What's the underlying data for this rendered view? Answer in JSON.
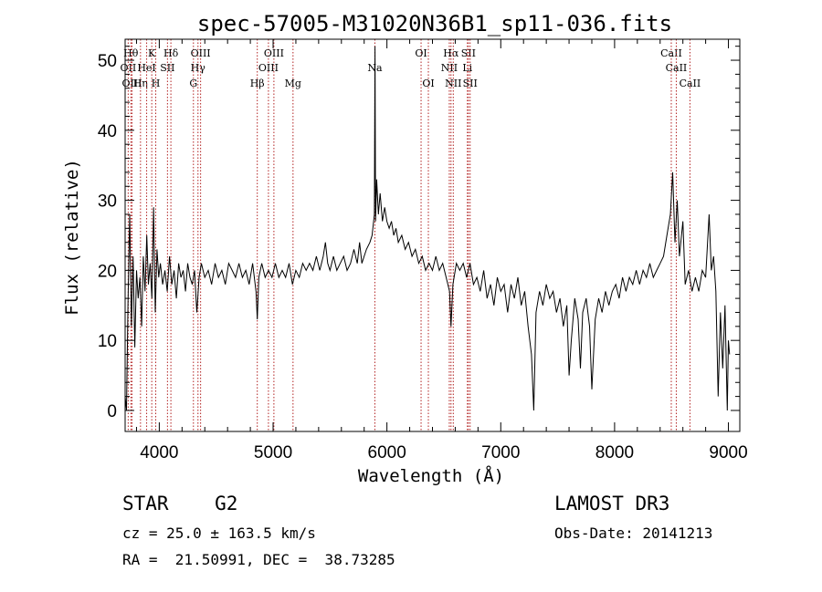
{
  "chart_data": {
    "type": "line",
    "title": "spec-57005-M31020N36B1_sp11-036.fits",
    "xlabel": "Wavelength (Å)",
    "ylabel": "Flux (relative)",
    "xlim": [
      3700,
      9100
    ],
    "ylim": [
      -3,
      53
    ],
    "xticks": [
      4000,
      5000,
      6000,
      7000,
      8000,
      9000
    ],
    "yticks": [
      0,
      10,
      20,
      30,
      40,
      50
    ],
    "grid": false,
    "series": [
      {
        "name": "flux",
        "color": "#000000",
        "points": [
          [
            3700,
            2
          ],
          [
            3712,
            0
          ],
          [
            3725,
            15
          ],
          [
            3740,
            28
          ],
          [
            3755,
            12
          ],
          [
            3770,
            22
          ],
          [
            3785,
            9
          ],
          [
            3800,
            20
          ],
          [
            3815,
            16
          ],
          [
            3830,
            19
          ],
          [
            3845,
            12
          ],
          [
            3860,
            22
          ],
          [
            3875,
            17
          ],
          [
            3890,
            25
          ],
          [
            3905,
            18
          ],
          [
            3920,
            21
          ],
          [
            3935,
            16
          ],
          [
            3950,
            29
          ],
          [
            3965,
            14
          ],
          [
            3980,
            23
          ],
          [
            3995,
            19
          ],
          [
            4010,
            21
          ],
          [
            4030,
            18
          ],
          [
            4050,
            20
          ],
          [
            4070,
            17
          ],
          [
            4090,
            22
          ],
          [
            4110,
            18
          ],
          [
            4130,
            20
          ],
          [
            4150,
            16
          ],
          [
            4170,
            21
          ],
          [
            4190,
            19
          ],
          [
            4210,
            20
          ],
          [
            4230,
            17
          ],
          [
            4250,
            21
          ],
          [
            4270,
            19
          ],
          [
            4290,
            18
          ],
          [
            4310,
            20
          ],
          [
            4330,
            14
          ],
          [
            4350,
            19
          ],
          [
            4370,
            21
          ],
          [
            4400,
            19
          ],
          [
            4430,
            20
          ],
          [
            4460,
            18
          ],
          [
            4490,
            21
          ],
          [
            4520,
            19
          ],
          [
            4550,
            20
          ],
          [
            4580,
            18
          ],
          [
            4610,
            21
          ],
          [
            4640,
            20
          ],
          [
            4670,
            19
          ],
          [
            4700,
            21
          ],
          [
            4730,
            19
          ],
          [
            4760,
            20
          ],
          [
            4790,
            18
          ],
          [
            4820,
            21
          ],
          [
            4850,
            17
          ],
          [
            4861,
            13
          ],
          [
            4875,
            19
          ],
          [
            4900,
            21
          ],
          [
            4930,
            19
          ],
          [
            4960,
            20
          ],
          [
            4990,
            19
          ],
          [
            5020,
            21
          ],
          [
            5050,
            19
          ],
          [
            5080,
            20
          ],
          [
            5110,
            19
          ],
          [
            5140,
            21
          ],
          [
            5170,
            18
          ],
          [
            5200,
            20
          ],
          [
            5230,
            19
          ],
          [
            5260,
            21
          ],
          [
            5290,
            20
          ],
          [
            5320,
            21
          ],
          [
            5350,
            20
          ],
          [
            5380,
            22
          ],
          [
            5410,
            20
          ],
          [
            5440,
            22
          ],
          [
            5460,
            24
          ],
          [
            5480,
            21
          ],
          [
            5500,
            20
          ],
          [
            5530,
            22
          ],
          [
            5560,
            20
          ],
          [
            5590,
            21
          ],
          [
            5620,
            22
          ],
          [
            5650,
            20
          ],
          [
            5680,
            21
          ],
          [
            5710,
            23
          ],
          [
            5740,
            21
          ],
          [
            5760,
            24
          ],
          [
            5780,
            21
          ],
          [
            5800,
            22
          ],
          [
            5820,
            23
          ],
          [
            5850,
            24
          ],
          [
            5870,
            25
          ],
          [
            5890,
            28
          ],
          [
            5895,
            52
          ],
          [
            5900,
            27
          ],
          [
            5910,
            33
          ],
          [
            5925,
            28
          ],
          [
            5940,
            31
          ],
          [
            5960,
            27
          ],
          [
            5980,
            29
          ],
          [
            6000,
            27
          ],
          [
            6020,
            26
          ],
          [
            6040,
            27
          ],
          [
            6060,
            25
          ],
          [
            6080,
            26
          ],
          [
            6100,
            24
          ],
          [
            6130,
            25
          ],
          [
            6160,
            23
          ],
          [
            6190,
            24
          ],
          [
            6220,
            22
          ],
          [
            6250,
            23
          ],
          [
            6280,
            21
          ],
          [
            6310,
            22
          ],
          [
            6340,
            20
          ],
          [
            6370,
            21
          ],
          [
            6400,
            20
          ],
          [
            6430,
            22
          ],
          [
            6460,
            20
          ],
          [
            6490,
            21
          ],
          [
            6520,
            19
          ],
          [
            6550,
            17
          ],
          [
            6563,
            12
          ],
          [
            6580,
            18
          ],
          [
            6610,
            21
          ],
          [
            6640,
            20
          ],
          [
            6670,
            21
          ],
          [
            6700,
            19
          ],
          [
            6730,
            21
          ],
          [
            6760,
            18
          ],
          [
            6790,
            19
          ],
          [
            6820,
            17
          ],
          [
            6850,
            20
          ],
          [
            6880,
            16
          ],
          [
            6910,
            18
          ],
          [
            6940,
            15
          ],
          [
            6970,
            19
          ],
          [
            7000,
            17
          ],
          [
            7030,
            18
          ],
          [
            7060,
            14
          ],
          [
            7090,
            18
          ],
          [
            7120,
            16
          ],
          [
            7150,
            19
          ],
          [
            7180,
            15
          ],
          [
            7210,
            17
          ],
          [
            7240,
            12
          ],
          [
            7270,
            8
          ],
          [
            7290,
            0
          ],
          [
            7310,
            14
          ],
          [
            7340,
            17
          ],
          [
            7370,
            15
          ],
          [
            7400,
            18
          ],
          [
            7430,
            16
          ],
          [
            7460,
            17
          ],
          [
            7490,
            14
          ],
          [
            7520,
            16
          ],
          [
            7550,
            12
          ],
          [
            7580,
            15
          ],
          [
            7600,
            5
          ],
          [
            7620,
            10
          ],
          [
            7650,
            16
          ],
          [
            7680,
            13
          ],
          [
            7700,
            6
          ],
          [
            7720,
            14
          ],
          [
            7750,
            16
          ],
          [
            7780,
            12
          ],
          [
            7800,
            3
          ],
          [
            7830,
            13
          ],
          [
            7860,
            16
          ],
          [
            7890,
            14
          ],
          [
            7920,
            17
          ],
          [
            7950,
            15
          ],
          [
            7980,
            17
          ],
          [
            8010,
            18
          ],
          [
            8040,
            16
          ],
          [
            8070,
            19
          ],
          [
            8100,
            17
          ],
          [
            8130,
            19
          ],
          [
            8160,
            18
          ],
          [
            8190,
            20
          ],
          [
            8220,
            18
          ],
          [
            8250,
            20
          ],
          [
            8280,
            19
          ],
          [
            8310,
            21
          ],
          [
            8340,
            19
          ],
          [
            8370,
            20
          ],
          [
            8400,
            21
          ],
          [
            8430,
            22
          ],
          [
            8460,
            25
          ],
          [
            8490,
            28
          ],
          [
            8510,
            34
          ],
          [
            8530,
            24
          ],
          [
            8550,
            30
          ],
          [
            8570,
            22
          ],
          [
            8600,
            27
          ],
          [
            8620,
            18
          ],
          [
            8650,
            20
          ],
          [
            8680,
            17
          ],
          [
            8710,
            19
          ],
          [
            8740,
            17
          ],
          [
            8770,
            20
          ],
          [
            8800,
            19
          ],
          [
            8830,
            28
          ],
          [
            8850,
            20
          ],
          [
            8870,
            22
          ],
          [
            8890,
            17
          ],
          [
            8910,
            2
          ],
          [
            8930,
            14
          ],
          [
            8950,
            6
          ],
          [
            8970,
            15
          ],
          [
            8990,
            0
          ],
          [
            9000,
            10
          ],
          [
            9010,
            8
          ]
        ]
      }
    ],
    "lines": [
      {
        "label": "OII",
        "wl": 3727,
        "row": 2
      },
      {
        "label": "Hθ",
        "wl": 3750,
        "row": 1
      },
      {
        "label": "OIII",
        "wl": 3760,
        "row": 3
      },
      {
        "label": "Hη",
        "wl": 3835,
        "row": 3
      },
      {
        "label": "HeI",
        "wl": 3889,
        "row": 2
      },
      {
        "label": "K",
        "wl": 3934,
        "row": 1
      },
      {
        "label": "H",
        "wl": 3969,
        "row": 3
      },
      {
        "label": "SII",
        "wl": 4072,
        "row": 2
      },
      {
        "label": "Hδ",
        "wl": 4102,
        "row": 1
      },
      {
        "label": "G",
        "wl": 4300,
        "row": 3
      },
      {
        "label": "Hγ",
        "wl": 4340,
        "row": 2
      },
      {
        "label": "OIII",
        "wl": 4363,
        "row": 1
      },
      {
        "label": "Hβ",
        "wl": 4861,
        "row": 3
      },
      {
        "label": "OIII",
        "wl": 4959,
        "row": 2
      },
      {
        "label": "OIII",
        "wl": 5007,
        "row": 1
      },
      {
        "label": "Mg",
        "wl": 5175,
        "row": 3
      },
      {
        "label": "Na",
        "wl": 5894,
        "row": 2
      },
      {
        "label": "OI",
        "wl": 6300,
        "row": 1
      },
      {
        "label": "OI",
        "wl": 6364,
        "row": 3
      },
      {
        "label": "NII",
        "wl": 6548,
        "row": 2
      },
      {
        "label": "Hα",
        "wl": 6563,
        "row": 1
      },
      {
        "label": "NII",
        "wl": 6583,
        "row": 3
      },
      {
        "label": "Li",
        "wl": 6707,
        "row": 2
      },
      {
        "label": "SII",
        "wl": 6716,
        "row": 1
      },
      {
        "label": "SII",
        "wl": 6731,
        "row": 3
      },
      {
        "label": "CaII",
        "wl": 8498,
        "row": 1
      },
      {
        "label": "CaII",
        "wl": 8542,
        "row": 2
      },
      {
        "label": "CaII",
        "wl": 8662,
        "row": 3
      }
    ]
  },
  "info": {
    "class_line": "STAR    G2",
    "survey": "LAMOST DR3",
    "redshift": "cz = 25.0 ± 163.5 km/s",
    "obs_date": "Obs-Date: 20141213",
    "coords": "RA =  21.50991, DEC =  38.73285"
  },
  "colors": {
    "line_marker": "#b22222",
    "spectrum": "#000000"
  }
}
